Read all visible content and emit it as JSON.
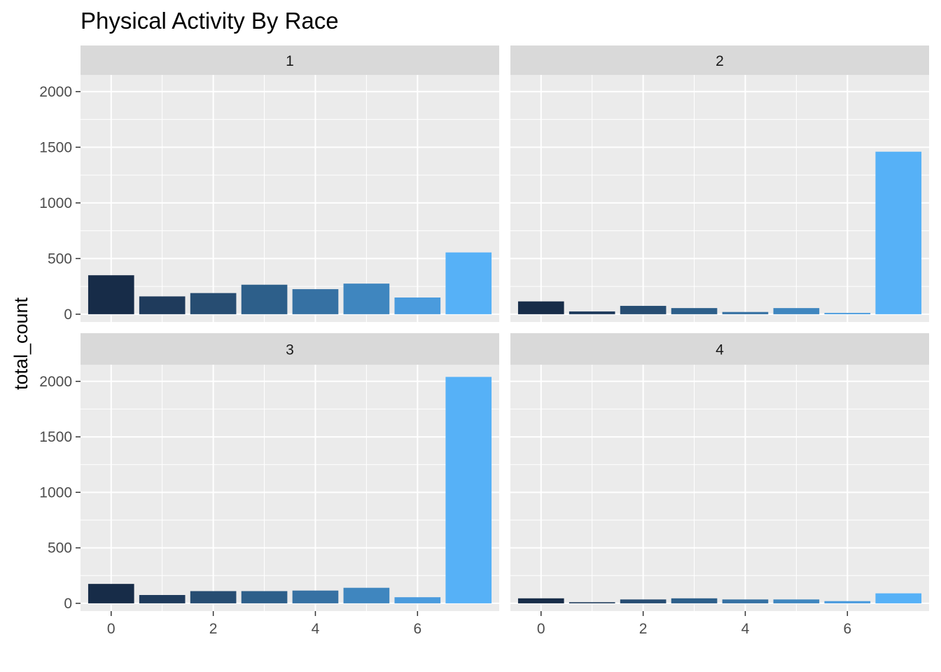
{
  "chart_data": {
    "type": "bar",
    "title": "Physical Activity By Race",
    "xlabel": "",
    "ylabel": "total_count",
    "ylim": [
      0,
      2150
    ],
    "xlim": [
      -0.6,
      7.6
    ],
    "y_ticks": [
      "0",
      "500",
      "1000",
      "1500",
      "2000"
    ],
    "x_ticks": [
      "0",
      "2",
      "4",
      "6"
    ],
    "x_tick_values": [
      0,
      2,
      4,
      6
    ],
    "y_tick_values": [
      0,
      500,
      1000,
      1500,
      2000
    ],
    "x": [
      0,
      1,
      2,
      3,
      4,
      5,
      6,
      7
    ],
    "bar_colors": [
      "#172c48",
      "#1f3b5c",
      "#274d72",
      "#2d5f8a",
      "#3671a3",
      "#3f86bf",
      "#4a9bdd",
      "#56b1f7"
    ],
    "grid": true,
    "panel_background": "#ebebeb",
    "strip_background": "#d9d9d9",
    "facets": [
      {
        "label": "1",
        "values": [
          350,
          160,
          190,
          265,
          225,
          275,
          150,
          555
        ]
      },
      {
        "label": "2",
        "values": [
          115,
          25,
          75,
          55,
          20,
          55,
          12,
          1460
        ]
      },
      {
        "label": "3",
        "values": [
          175,
          75,
          110,
          110,
          115,
          140,
          55,
          2040
        ]
      },
      {
        "label": "4",
        "values": [
          45,
          10,
          35,
          45,
          35,
          35,
          20,
          90
        ]
      }
    ]
  }
}
